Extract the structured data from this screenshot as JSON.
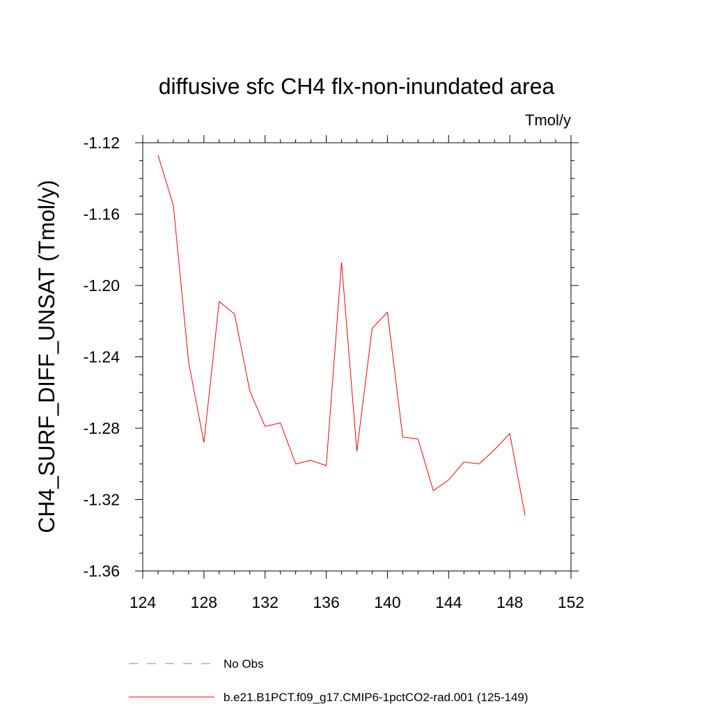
{
  "chart_data": {
    "type": "line",
    "title": "diffusive sfc CH4 flx-non-inundated area",
    "units": "Tmol/y",
    "ylabel": "CH4_SURF_DIFF_UNSAT  (Tmol/y)",
    "xlabel": "",
    "xlim": [
      124,
      152
    ],
    "ylim": [
      -1.36,
      -1.12
    ],
    "x_ticks": [
      124,
      128,
      132,
      136,
      140,
      144,
      148,
      152
    ],
    "y_ticks": [
      -1.36,
      -1.32,
      -1.28,
      -1.24,
      -1.2,
      -1.16,
      -1.12
    ],
    "x_tick_labels": [
      "124",
      "128",
      "132",
      "136",
      "140",
      "144",
      "148",
      "152"
    ],
    "y_tick_labels": [
      "-1.36",
      "-1.32",
      "-1.28",
      "-1.24",
      "-1.20",
      "-1.16",
      "-1.12"
    ],
    "grid": false,
    "legend_position": "bottom",
    "series": [
      {
        "name": "b.e21.B1PCT.f09_g17.CMIP6-1pctCO2-rad.001 (125-149)",
        "color": "#ff0000",
        "style": "solid",
        "x": [
          125,
          126,
          127,
          128,
          129,
          130,
          131,
          132,
          133,
          134,
          135,
          136,
          137,
          138,
          139,
          140,
          141,
          142,
          143,
          144,
          145,
          146,
          147,
          148,
          149
        ],
        "y": [
          -1.127,
          -1.155,
          -1.243,
          -1.288,
          -1.209,
          -1.216,
          -1.259,
          -1.279,
          -1.277,
          -1.3,
          -1.298,
          -1.301,
          -1.187,
          -1.293,
          -1.224,
          -1.215,
          -1.285,
          -1.286,
          -1.315,
          -1.309,
          -1.299,
          -1.3,
          -1.292,
          -1.283,
          -1.329
        ]
      }
    ],
    "legend": [
      {
        "label": "No Obs",
        "color": "#8080c0",
        "style": "dashed"
      },
      {
        "label": "b.e21.B1PCT.f09_g17.CMIP6-1pctCO2-rad.001 (125-149)",
        "color": "#ff0000",
        "style": "solid"
      }
    ]
  }
}
